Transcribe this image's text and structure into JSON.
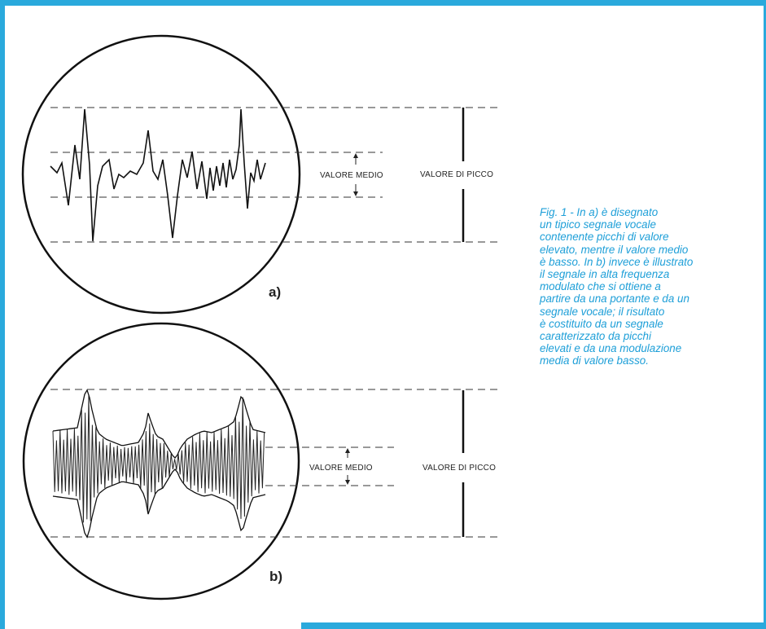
{
  "colors": {
    "accent": "#2aa9dc",
    "caption_text": "#1e9fd8",
    "ink": "#222222"
  },
  "panel_a": {
    "label": "a)",
    "mean_label": "VALORE MEDIO",
    "peak_label": "VALORE DI PICCO"
  },
  "panel_b": {
    "label": "b)",
    "mean_label": "VALORE MEDIO",
    "peak_label": "VALORE DI PICCO"
  },
  "caption": {
    "lines": [
      "Fig. 1 - In a) è disegnato",
      "un tipico segnale vocale",
      "contenente picchi di valore",
      "elevato, mentre il valore medio",
      "è basso. In b) invece è illustrato",
      "il segnale in alta frequenza",
      "modulato che si ottiene a",
      "partire da una portante e da un",
      "segnale vocale; il risultato",
      "è costituito da un segnale",
      "caratterizzato da picchi",
      "elevati e da una modulazione",
      "media di valore basso."
    ]
  }
}
